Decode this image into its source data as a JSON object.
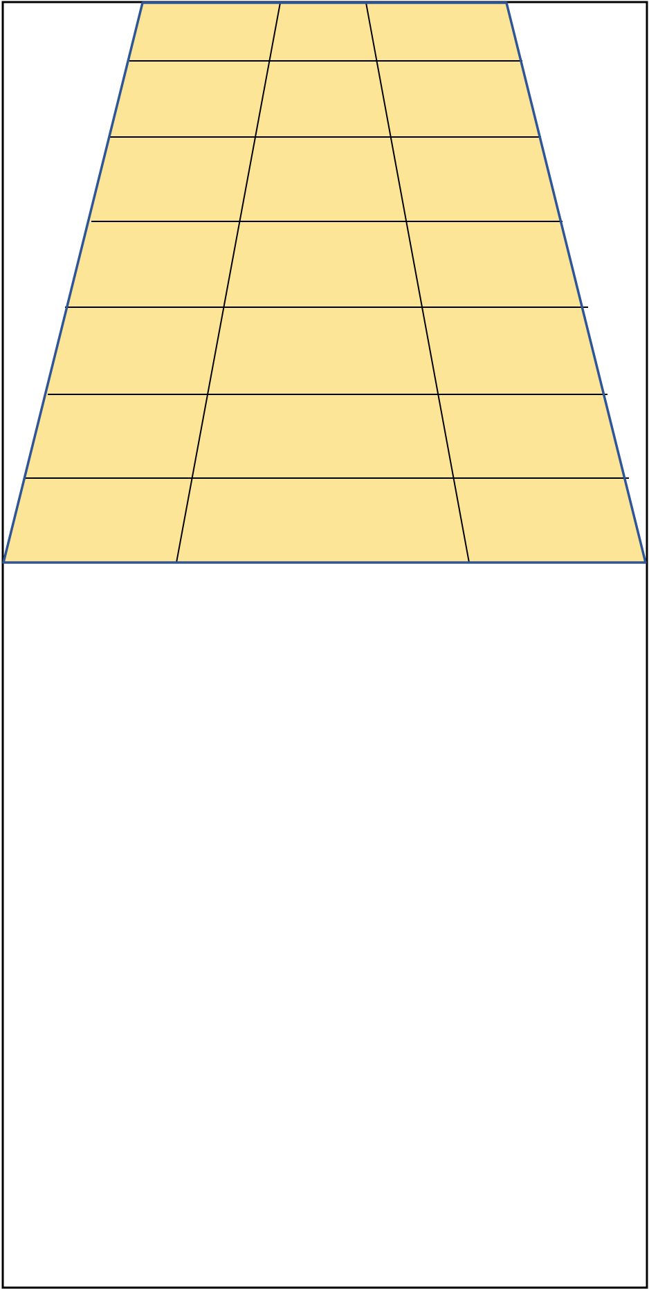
{
  "colors": {
    "background": "#ffffff",
    "frame_stroke": "#000000",
    "trapezoid_fill": "#fde598",
    "trapezoid_stroke": "#2e5597",
    "grid_stroke": "#000000"
  },
  "grid": {
    "columns": 3,
    "rows": 7
  }
}
